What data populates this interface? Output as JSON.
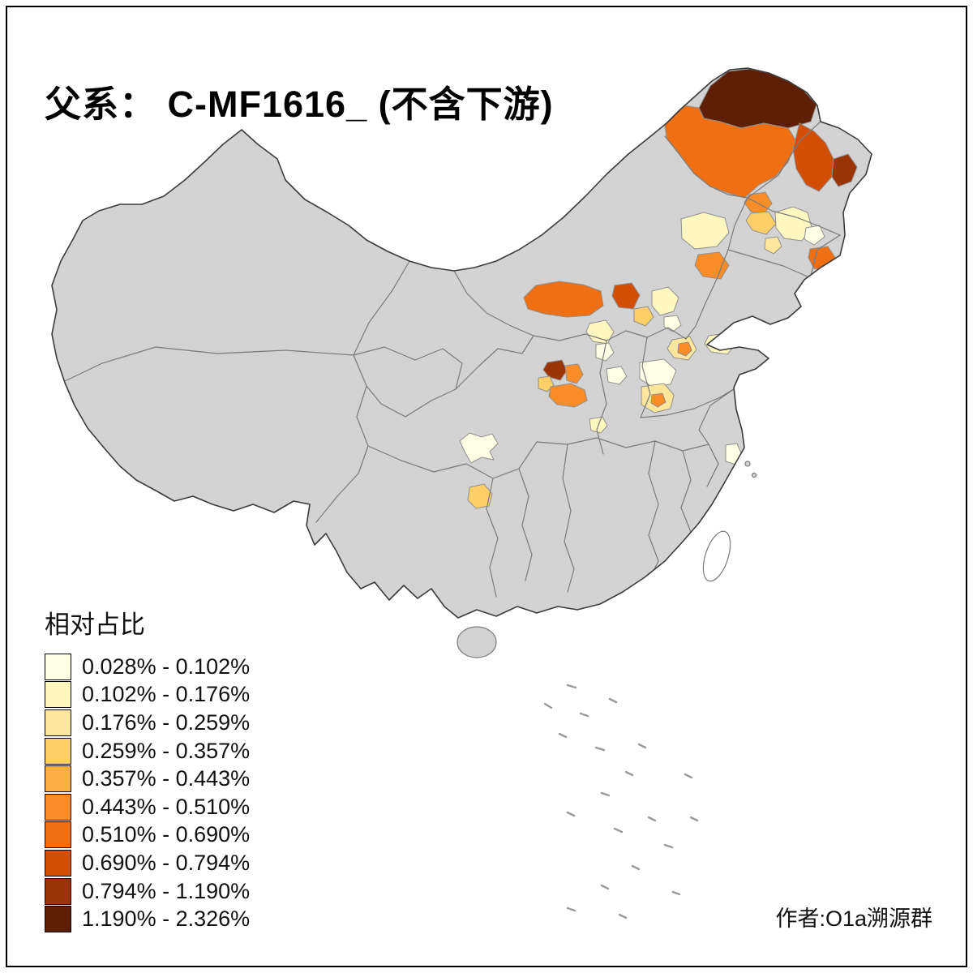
{
  "title": "父系： C-MF1616_ (不含下游)",
  "attribution": "作者:O1a溯源群",
  "legend": {
    "title": "相对占比",
    "entries": [
      {
        "label": "0.028% - 0.102%",
        "color": "#FFFFE5"
      },
      {
        "label": "0.102% - 0.176%",
        "color": "#FFF7C0"
      },
      {
        "label": "0.176% - 0.259%",
        "color": "#FEE79C"
      },
      {
        "label": "0.259% - 0.357%",
        "color": "#FECF66"
      },
      {
        "label": "0.357% - 0.443%",
        "color": "#FDB044"
      },
      {
        "label": "0.443% - 0.510%",
        "color": "#FB8D28"
      },
      {
        "label": "0.510% - 0.690%",
        "color": "#EF6F12"
      },
      {
        "label": "0.690% - 0.794%",
        "color": "#D24E04"
      },
      {
        "label": "0.794% - 1.190%",
        "color": "#9A3404"
      },
      {
        "label": "1.190% - 2.326%",
        "color": "#5E1F07"
      }
    ]
  },
  "map": {
    "base_fill": "#D3D3D3",
    "boundary_color": "#7A7A7A",
    "outline_color": "#3B3B3B",
    "background": "#FFFFFF"
  }
}
